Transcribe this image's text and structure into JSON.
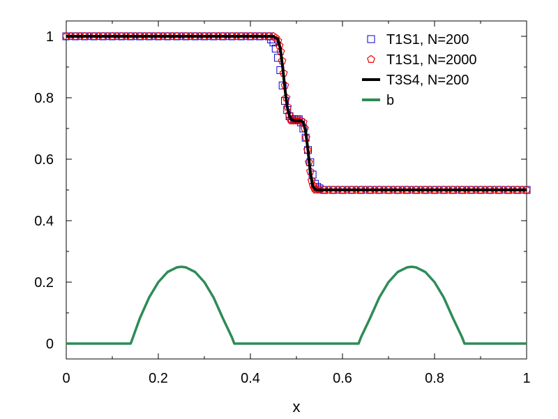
{
  "chart_data": {
    "type": "line",
    "title": "",
    "xlabel": "x",
    "ylabel": "",
    "xlim": [
      0,
      1
    ],
    "ylim": [
      -0.05,
      1.05
    ],
    "xticks": [
      0,
      0.2,
      0.4,
      0.6,
      0.8,
      1
    ],
    "xtick_labels": [
      "0",
      "0.2",
      "0.4",
      "0.6",
      "0.8",
      "1"
    ],
    "yticks": [
      0,
      0.2,
      0.4,
      0.6,
      0.8,
      1
    ],
    "ytick_labels": [
      "0",
      "0.2",
      "0.4",
      "0.6",
      "0.8",
      "1"
    ],
    "grid": false,
    "legend_position": "top-right",
    "series": [
      {
        "name": "T1S1, N=200",
        "marker": "square",
        "color": "#0000cc",
        "x": [
          0.0,
          0.02,
          0.04,
          0.06,
          0.08,
          0.1,
          0.12,
          0.14,
          0.16,
          0.18,
          0.2,
          0.22,
          0.24,
          0.26,
          0.28,
          0.3,
          0.32,
          0.34,
          0.36,
          0.38,
          0.4,
          0.42,
          0.44,
          0.445,
          0.45,
          0.455,
          0.46,
          0.465,
          0.47,
          0.475,
          0.48,
          0.485,
          0.49,
          0.495,
          0.5,
          0.505,
          0.51,
          0.515,
          0.52,
          0.525,
          0.53,
          0.535,
          0.54,
          0.545,
          0.55,
          0.56,
          0.58,
          0.6,
          0.62,
          0.64,
          0.66,
          0.68,
          0.7,
          0.72,
          0.74,
          0.76,
          0.78,
          0.8,
          0.82,
          0.84,
          0.86,
          0.88,
          0.9,
          0.92,
          0.94,
          0.96,
          0.98,
          1.0
        ],
        "y": [
          1.0,
          1.0,
          1.0,
          1.0,
          1.0,
          1.0,
          1.0,
          1.0,
          1.0,
          1.0,
          1.0,
          1.0,
          1.0,
          1.0,
          1.0,
          1.0,
          1.0,
          1.0,
          1.0,
          1.0,
          1.0,
          1.0,
          1.0,
          0.99,
          0.98,
          0.96,
          0.93,
          0.89,
          0.84,
          0.79,
          0.76,
          0.74,
          0.73,
          0.73,
          0.73,
          0.73,
          0.72,
          0.7,
          0.67,
          0.63,
          0.59,
          0.55,
          0.52,
          0.51,
          0.505,
          0.5,
          0.5,
          0.5,
          0.5,
          0.5,
          0.5,
          0.5,
          0.5,
          0.5,
          0.5,
          0.5,
          0.5,
          0.5,
          0.5,
          0.5,
          0.5,
          0.5,
          0.5,
          0.5,
          0.5,
          0.5,
          0.5,
          0.5
        ]
      },
      {
        "name": "T1S1, N=2000",
        "marker": "pentagon",
        "color": "#ee0000",
        "x": [
          0.0,
          0.01,
          0.02,
          0.03,
          0.04,
          0.05,
          0.06,
          0.07,
          0.08,
          0.09,
          0.1,
          0.11,
          0.12,
          0.13,
          0.14,
          0.15,
          0.16,
          0.17,
          0.18,
          0.19,
          0.2,
          0.21,
          0.22,
          0.23,
          0.24,
          0.25,
          0.26,
          0.27,
          0.28,
          0.29,
          0.3,
          0.31,
          0.32,
          0.33,
          0.34,
          0.35,
          0.36,
          0.37,
          0.38,
          0.39,
          0.4,
          0.41,
          0.42,
          0.43,
          0.44,
          0.45,
          0.455,
          0.46,
          0.463,
          0.466,
          0.469,
          0.472,
          0.475,
          0.478,
          0.481,
          0.484,
          0.487,
          0.49,
          0.495,
          0.5,
          0.505,
          0.51,
          0.515,
          0.518,
          0.521,
          0.524,
          0.527,
          0.53,
          0.533,
          0.536,
          0.539,
          0.542,
          0.545,
          0.55,
          0.56,
          0.57,
          0.58,
          0.59,
          0.6,
          0.61,
          0.62,
          0.63,
          0.64,
          0.65,
          0.66,
          0.67,
          0.68,
          0.69,
          0.7,
          0.71,
          0.72,
          0.73,
          0.74,
          0.75,
          0.76,
          0.77,
          0.78,
          0.79,
          0.8,
          0.81,
          0.82,
          0.83,
          0.84,
          0.85,
          0.86,
          0.87,
          0.88,
          0.89,
          0.9,
          0.91,
          0.92,
          0.93,
          0.94,
          0.95,
          0.96,
          0.97,
          0.98,
          0.99,
          1.0
        ],
        "y": [
          1.0,
          1.0,
          1.0,
          1.0,
          1.0,
          1.0,
          1.0,
          1.0,
          1.0,
          1.0,
          1.0,
          1.0,
          1.0,
          1.0,
          1.0,
          1.0,
          1.0,
          1.0,
          1.0,
          1.0,
          1.0,
          1.0,
          1.0,
          1.0,
          1.0,
          1.0,
          1.0,
          1.0,
          1.0,
          1.0,
          1.0,
          1.0,
          1.0,
          1.0,
          1.0,
          1.0,
          1.0,
          1.0,
          1.0,
          1.0,
          1.0,
          1.0,
          1.0,
          1.0,
          1.0,
          1.0,
          0.995,
          0.985,
          0.97,
          0.95,
          0.92,
          0.88,
          0.84,
          0.8,
          0.77,
          0.745,
          0.73,
          0.725,
          0.725,
          0.725,
          0.725,
          0.725,
          0.72,
          0.7,
          0.67,
          0.63,
          0.59,
          0.56,
          0.53,
          0.515,
          0.505,
          0.5,
          0.5,
          0.5,
          0.5,
          0.5,
          0.5,
          0.5,
          0.5,
          0.5,
          0.5,
          0.5,
          0.5,
          0.5,
          0.5,
          0.5,
          0.5,
          0.5,
          0.5,
          0.5,
          0.5,
          0.5,
          0.5,
          0.5,
          0.5,
          0.5,
          0.5,
          0.5,
          0.5,
          0.5,
          0.5,
          0.5,
          0.5,
          0.5,
          0.5,
          0.5,
          0.5,
          0.5,
          0.5,
          0.5,
          0.5,
          0.5,
          0.5,
          0.5,
          0.5,
          0.5,
          0.5,
          0.5,
          0.5
        ]
      },
      {
        "name": "T3S4, N=200",
        "marker": "line",
        "color": "#000000",
        "x": [
          0.0,
          0.1,
          0.2,
          0.3,
          0.4,
          0.45,
          0.46,
          0.465,
          0.47,
          0.475,
          0.48,
          0.485,
          0.49,
          0.5,
          0.51,
          0.515,
          0.52,
          0.525,
          0.53,
          0.535,
          0.54,
          0.545,
          0.55,
          0.6,
          0.7,
          0.8,
          0.9,
          1.0
        ],
        "y": [
          1.0,
          1.0,
          1.0,
          1.0,
          1.0,
          1.0,
          0.99,
          0.96,
          0.9,
          0.83,
          0.77,
          0.74,
          0.727,
          0.725,
          0.725,
          0.72,
          0.69,
          0.63,
          0.56,
          0.515,
          0.502,
          0.5,
          0.5,
          0.5,
          0.5,
          0.5,
          0.5,
          0.5
        ]
      },
      {
        "name": "b",
        "marker": "line",
        "color": "#2e8b57",
        "x": [
          0.0,
          0.14,
          0.16,
          0.18,
          0.2,
          0.22,
          0.24,
          0.25,
          0.26,
          0.28,
          0.3,
          0.32,
          0.34,
          0.36,
          0.365,
          0.5,
          0.635,
          0.64,
          0.66,
          0.68,
          0.7,
          0.72,
          0.74,
          0.75,
          0.76,
          0.78,
          0.8,
          0.82,
          0.84,
          0.86,
          0.865,
          1.0
        ],
        "y": [
          0.0,
          0.0,
          0.083,
          0.15,
          0.2,
          0.233,
          0.248,
          0.25,
          0.248,
          0.233,
          0.2,
          0.15,
          0.083,
          0.02,
          0.0,
          0.0,
          0.0,
          0.02,
          0.083,
          0.15,
          0.2,
          0.233,
          0.248,
          0.25,
          0.248,
          0.233,
          0.2,
          0.15,
          0.083,
          0.02,
          0.0,
          0.0
        ]
      }
    ]
  }
}
